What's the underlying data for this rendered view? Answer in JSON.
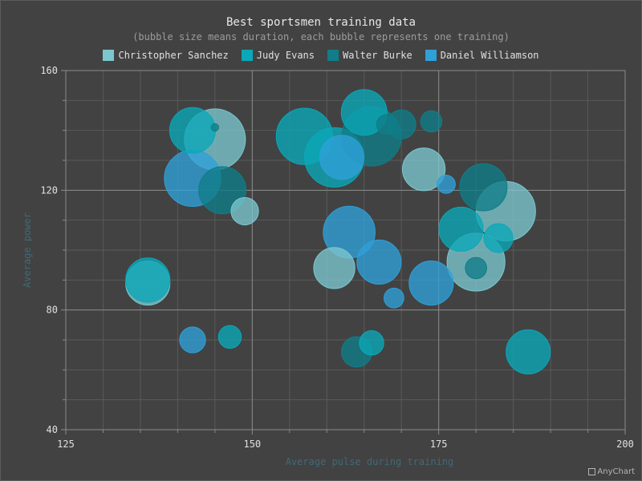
{
  "chart_data": {
    "type": "bubble",
    "title": "Best sportsmen training data",
    "subtitle": "(bubble size means duration, each bubble represents one training)",
    "xlabel": "Average pulse during training",
    "ylabel": "Average power",
    "xlim": [
      125,
      200
    ],
    "ylim": [
      40,
      160
    ],
    "xticks": [
      125,
      150,
      175,
      200
    ],
    "yticks": [
      40,
      80,
      120,
      160
    ],
    "grid": true,
    "legend_position": "top",
    "series": [
      {
        "name": "Christopher Sanchez",
        "color": "#7cc7cf",
        "points": [
          {
            "x": 145,
            "y": 137,
            "size": 40
          },
          {
            "x": 161,
            "y": 94,
            "size": 27
          },
          {
            "x": 173,
            "y": 127,
            "size": 28
          },
          {
            "x": 180,
            "y": 96,
            "size": 38
          },
          {
            "x": 184,
            "y": 113,
            "size": 39
          },
          {
            "x": 149,
            "y": 113,
            "size": 18
          },
          {
            "x": 136,
            "y": 89,
            "size": 29
          }
        ]
      },
      {
        "name": "Judy Evans",
        "color": "#0aa8b8",
        "points": [
          {
            "x": 142,
            "y": 140,
            "size": 30
          },
          {
            "x": 157,
            "y": 138,
            "size": 37
          },
          {
            "x": 161,
            "y": 131,
            "size": 39
          },
          {
            "x": 165,
            "y": 146,
            "size": 30
          },
          {
            "x": 178,
            "y": 107,
            "size": 29
          },
          {
            "x": 183,
            "y": 104,
            "size": 19
          },
          {
            "x": 136,
            "y": 90,
            "size": 29
          },
          {
            "x": 147,
            "y": 71,
            "size": 15
          },
          {
            "x": 166,
            "y": 69,
            "size": 16
          },
          {
            "x": 187,
            "y": 66,
            "size": 29
          }
        ]
      },
      {
        "name": "Walter Burke",
        "color": "#107d88",
        "points": [
          {
            "x": 145,
            "y": 141,
            "size": 5
          },
          {
            "x": 146,
            "y": 120,
            "size": 31
          },
          {
            "x": 166,
            "y": 138,
            "size": 39
          },
          {
            "x": 168,
            "y": 142,
            "size": 13
          },
          {
            "x": 170,
            "y": 142,
            "size": 19
          },
          {
            "x": 174,
            "y": 143,
            "size": 14
          },
          {
            "x": 181,
            "y": 121,
            "size": 31
          },
          {
            "x": 180,
            "y": 94,
            "size": 14
          },
          {
            "x": 164,
            "y": 66,
            "size": 20
          }
        ]
      },
      {
        "name": "Daniel Williamson",
        "color": "#2fa0d8",
        "points": [
          {
            "x": 142,
            "y": 124,
            "size": 37
          },
          {
            "x": 162,
            "y": 131,
            "size": 29
          },
          {
            "x": 163,
            "y": 106,
            "size": 34
          },
          {
            "x": 167,
            "y": 96,
            "size": 29
          },
          {
            "x": 169,
            "y": 84,
            "size": 13
          },
          {
            "x": 174,
            "y": 89,
            "size": 29
          },
          {
            "x": 176,
            "y": 122,
            "size": 12
          },
          {
            "x": 142,
            "y": 70,
            "size": 17
          }
        ]
      }
    ]
  },
  "credit": "AnyChart"
}
